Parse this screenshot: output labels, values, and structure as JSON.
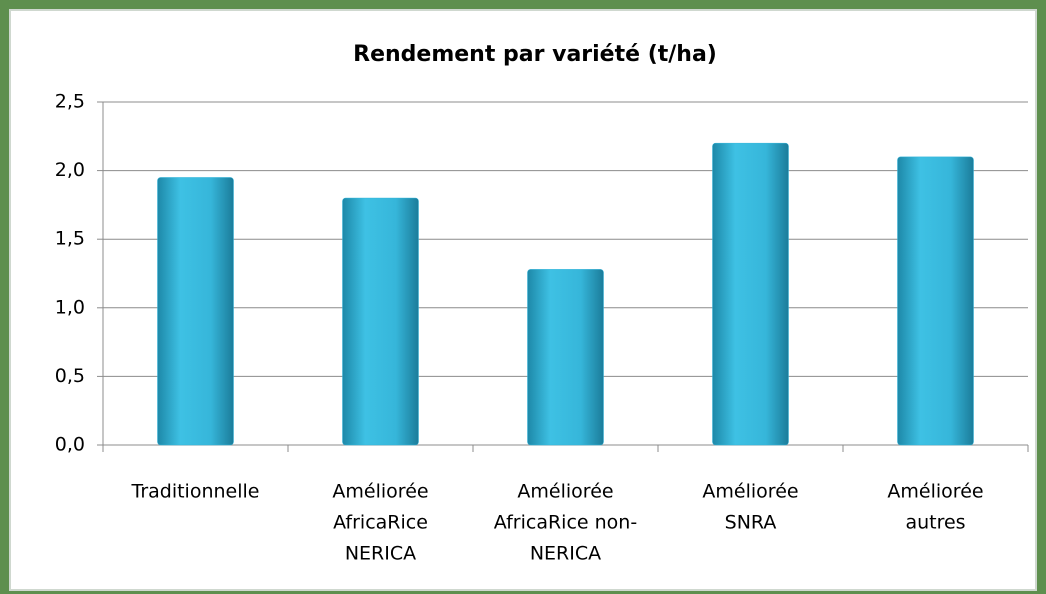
{
  "chart_data": {
    "type": "bar",
    "title": "Rendement par variété (t/ha)",
    "categories": [
      [
        "Traditionnelle"
      ],
      [
        "Améliorée",
        "AfricaRice",
        "NERICA"
      ],
      [
        "Améliorée",
        "AfricaRice non-",
        "NERICA"
      ],
      [
        "Améliorée",
        "SNRA"
      ],
      [
        "Améliorée",
        "autres"
      ]
    ],
    "values": [
      1.95,
      1.8,
      1.28,
      2.2,
      2.1
    ],
    "color": "#33b5da",
    "ylim": [
      0,
      2.5
    ],
    "yticks": [
      {
        "value": 0,
        "label": "0,0"
      },
      {
        "value": 0.5,
        "label": "0,5"
      },
      {
        "value": 1,
        "label": "1,0"
      },
      {
        "value": 1.5,
        "label": "1,5"
      },
      {
        "value": 2,
        "label": "2,0"
      },
      {
        "value": 2.5,
        "label": "2,5"
      }
    ],
    "grid": true
  }
}
